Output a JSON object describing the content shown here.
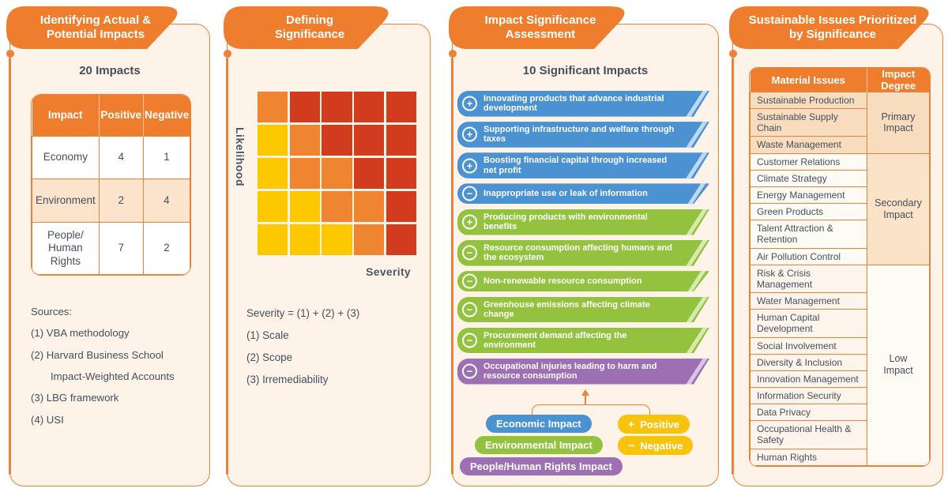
{
  "colors": {
    "accent_orange": "#ee7d2e",
    "panel_cream": "#fdf3e9",
    "text_slate": "#454f5d",
    "economic_blue": "#4b92d3",
    "environmental_green": "#93c33e",
    "people_purple": "#9c70b2",
    "sign_yellow": "#f8c30d",
    "heat_yellow": "#fdc800",
    "heat_orange": "#ef8530",
    "heat_red": "#d13c1e"
  },
  "panel1": {
    "header": "Identifying Actual & Potential Impacts",
    "title": "20 Impacts",
    "table": {
      "headers": [
        "Impact",
        "Positive",
        "Negative"
      ],
      "rows": [
        {
          "impact": "Economy",
          "positive": "4",
          "negative": "1",
          "highlight": false
        },
        {
          "impact": "Environment",
          "positive": "2",
          "negative": "4",
          "highlight": true
        },
        {
          "impact": "People/ Human Rights",
          "positive": "7",
          "negative": "2",
          "highlight": false
        }
      ]
    },
    "sources": [
      {
        "text": "Sources:",
        "indent": false
      },
      {
        "text": "(1) VBA methodology",
        "indent": false
      },
      {
        "text": "(2) Harvard Business School",
        "indent": false
      },
      {
        "text": "Impact-Weighted Accounts",
        "indent": true
      },
      {
        "text": "(3) LBG framework",
        "indent": false
      },
      {
        "text": "(4) USI",
        "indent": false
      }
    ]
  },
  "panel2": {
    "header": "Defining Significance",
    "ylabel": "Likelihood",
    "xlabel": "Severity",
    "formula_lines": [
      "Severity = (1) + (2) + (3)",
      "(1) Scale",
      "(2) Scope",
      "(3) Irremediability"
    ]
  },
  "chart_data": {
    "type": "heatmap",
    "title": "Defining Significance",
    "xlabel": "Severity",
    "ylabel": "Likelihood",
    "rows": 5,
    "cols": 5,
    "x_axis_note": "Severity increases left to right",
    "y_axis_note": "Likelihood increases bottom to top",
    "value_meaning": {
      "y": "low significance (yellow)",
      "o": "medium significance (orange)",
      "r": "high significance (red)"
    },
    "colors": {
      "y": "#fdc800",
      "o": "#ef8530",
      "r": "#d13c1e"
    },
    "grid": [
      [
        "o",
        "r",
        "r",
        "r",
        "r"
      ],
      [
        "y",
        "o",
        "r",
        "r",
        "r"
      ],
      [
        "y",
        "o",
        "o",
        "r",
        "r"
      ],
      [
        "y",
        "y",
        "o",
        "o",
        "r"
      ],
      [
        "y",
        "y",
        "y",
        "o",
        "r"
      ]
    ]
  },
  "panel3": {
    "header": "Impact Significance Assessment",
    "title": "10 Significant Impacts",
    "impacts": [
      {
        "sign": "+",
        "category": "economic",
        "text": "Innovating products that advance industrial development"
      },
      {
        "sign": "+",
        "category": "economic",
        "text": "Supporting infrastructure and welfare through taxes"
      },
      {
        "sign": "+",
        "category": "economic",
        "text": "Boosting financial capital through increased net profit"
      },
      {
        "sign": "−",
        "category": "economic",
        "text": "Inappropriate use or leak of information"
      },
      {
        "sign": "+",
        "category": "environmental",
        "text": "Producing products with environmental benefits"
      },
      {
        "sign": "−",
        "category": "environmental",
        "text": "Resource consumption affecting humans and the ecosystem"
      },
      {
        "sign": "−",
        "category": "environmental",
        "text": "Non-renewable resource consumption"
      },
      {
        "sign": "−",
        "category": "environmental",
        "text": "Greenhouse emissions affecting climate change"
      },
      {
        "sign": "−",
        "category": "environmental",
        "text": "Procurement demand affecting the environment"
      },
      {
        "sign": "−",
        "category": "people",
        "text": "Occupational injuries leading to harm and resource consumption"
      }
    ],
    "legend": {
      "categories": [
        {
          "label": "Economic Impact",
          "color": "#4b92d3"
        },
        {
          "label": "Environmental Impact",
          "color": "#93c33e"
        },
        {
          "label": "People/Human Rights Impact",
          "color": "#9c70b2"
        }
      ],
      "signs": [
        {
          "sign": "+",
          "label": "Positive",
          "color": "#f8c30d"
        },
        {
          "sign": "−",
          "label": "Negative",
          "color": "#f8c30d"
        }
      ]
    }
  },
  "panel4": {
    "header": "Sustainable Issues Prioritized by Significance",
    "table": {
      "headers": [
        "Material Issues",
        "Impact Degree"
      ],
      "groups": [
        {
          "degree": "Primary Impact",
          "issues": [
            "Sustainable Production",
            "Sustainable Supply Chain",
            "Waste Management"
          ]
        },
        {
          "degree": "Secondary Impact",
          "issues": [
            "Customer Relations",
            "Climate Strategy",
            "Energy Management",
            "Green Products",
            "Talent Attraction & Retention",
            "Air Pollution Control"
          ]
        },
        {
          "degree": "Low Impact",
          "issues": [
            "Risk & Crisis Management",
            "Water Management",
            "Human Capital Development",
            "Social Involvement",
            "Diversity & Inclusion",
            "Innovation Management",
            "Information Security",
            "Data Privacy",
            "Occupational Health & Safety",
            "Human Rights"
          ]
        }
      ]
    }
  }
}
